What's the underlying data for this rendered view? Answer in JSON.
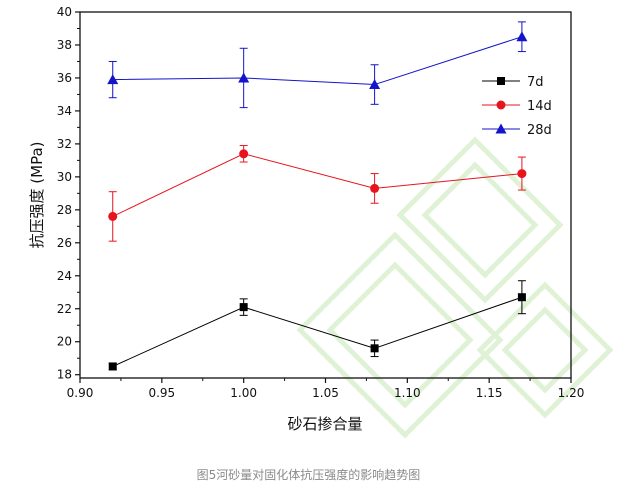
{
  "caption": "图5河砂量对固化体抗压强度的影响趋势图",
  "chart_data": {
    "type": "line",
    "title": "",
    "xlabel": "砂石掺合量",
    "ylabel": "抗压强度 (MPa)",
    "xlim": [
      0.9,
      1.2
    ],
    "ylim": [
      17.8,
      40
    ],
    "x_ticks": [
      "0.90",
      "0.95",
      "1.00",
      "1.05",
      "1.10",
      "1.15",
      "1.20"
    ],
    "y_ticks": [
      "18",
      "20",
      "22",
      "24",
      "26",
      "28",
      "30",
      "32",
      "34",
      "36",
      "38",
      "40"
    ],
    "legend_position": "top-right",
    "grid": false,
    "x": [
      0.92,
      1.0,
      1.08,
      1.17
    ],
    "series": [
      {
        "name": "7d",
        "color": "#000000",
        "marker": "square",
        "values": [
          18.5,
          22.1,
          19.6,
          22.7
        ],
        "errors": [
          0.2,
          0.5,
          0.5,
          1.0
        ]
      },
      {
        "name": "14d",
        "color": "#e8141c",
        "marker": "circle",
        "values": [
          27.6,
          31.4,
          29.3,
          30.2
        ],
        "errors": [
          1.5,
          0.5,
          0.9,
          1.0
        ]
      },
      {
        "name": "28d",
        "color": "#1414c8",
        "marker": "triangle",
        "values": [
          35.9,
          36.0,
          35.6,
          38.5
        ],
        "errors": [
          1.1,
          1.8,
          1.2,
          0.9
        ]
      }
    ]
  }
}
